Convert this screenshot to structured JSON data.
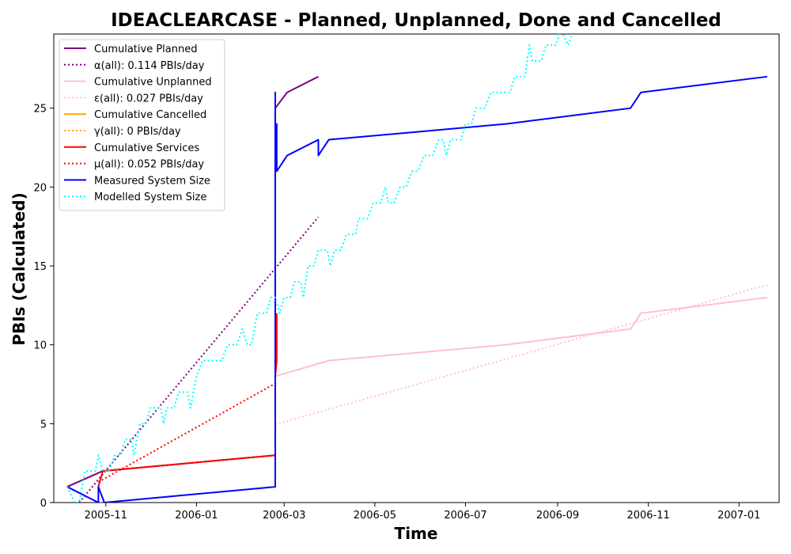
{
  "chart_data": {
    "type": "line",
    "title": "IDEACLEARCASE - Planned, Unplanned, Done  and Cancelled",
    "xlabel": "Time",
    "ylabel": "PBIs (Calculated)",
    "xlim": [
      "2005-09-27",
      "2007-01-28"
    ],
    "ylim": [
      0,
      29.7
    ],
    "x_ticks": [
      "2005-11",
      "2006-01",
      "2006-03",
      "2006-05",
      "2006-07",
      "2006-09",
      "2006-11",
      "2007-01"
    ],
    "y_ticks": [
      0,
      5,
      10,
      15,
      20,
      25
    ],
    "grid": false,
    "legend_position": "upper-left",
    "series": [
      {
        "name": "Cumulative Planned",
        "color": "#800080",
        "style": "solid",
        "points": [
          [
            "2005-10-06",
            1
          ],
          [
            "2005-10-30",
            2
          ],
          [
            "2006-02-23",
            3
          ],
          [
            "2006-02-23",
            25
          ],
          [
            "2006-03-03",
            26
          ],
          [
            "2006-03-24",
            27
          ]
        ]
      },
      {
        "name": "α(all): 0.114 PBIs/day",
        "color": "#800080",
        "style": "dotted",
        "points": [
          [
            "2005-10-14",
            0
          ],
          [
            "2006-03-24",
            18.1
          ]
        ]
      },
      {
        "name": "Cumulative Unplanned",
        "color": "#ffc0cb",
        "style": "solid",
        "points": [
          [
            "2006-02-23",
            8
          ],
          [
            "2006-03-31",
            9
          ],
          [
            "2006-07-28",
            10
          ],
          [
            "2006-10-20",
            11
          ],
          [
            "2006-10-27",
            12
          ],
          [
            "2007-01-20",
            13
          ]
        ]
      },
      {
        "name": "ε(all): 0.027 PBIs/day",
        "color": "#ffc0cb",
        "style": "dotted",
        "points": [
          [
            "2006-02-23",
            4.95
          ],
          [
            "2007-01-20",
            13.8
          ]
        ]
      },
      {
        "name": "Cumulative Cancelled",
        "color": "#ffa500",
        "style": "solid",
        "points": []
      },
      {
        "name": "γ(all): 0 PBIs/day",
        "color": "#ffa500",
        "style": "dotted",
        "points": []
      },
      {
        "name": "Cumulative Services",
        "color": "#ff0000",
        "style": "solid",
        "points": [
          [
            "2005-10-27",
            1
          ],
          [
            "2005-10-30",
            2
          ],
          [
            "2006-02-23",
            3
          ],
          [
            "2006-02-23",
            8
          ],
          [
            "2006-02-24",
            9
          ],
          [
            "2006-02-24",
            12
          ]
        ]
      },
      {
        "name": "μ(all): 0.052 PBIs/day",
        "color": "#ff0000",
        "style": "dotted",
        "points": [
          [
            "2005-10-27",
            1.3
          ],
          [
            "2006-02-24",
            7.6
          ]
        ]
      },
      {
        "name": "Measured System Size",
        "color": "#0000ff",
        "style": "solid",
        "points": [
          [
            "2005-10-06",
            1
          ],
          [
            "2005-10-27",
            0
          ],
          [
            "2005-10-27",
            1
          ],
          [
            "2005-10-31",
            0
          ],
          [
            "2006-02-23",
            1
          ],
          [
            "2006-02-23",
            26
          ],
          [
            "2006-02-23",
            23
          ],
          [
            "2006-02-24",
            24
          ],
          [
            "2006-02-24",
            21
          ],
          [
            "2006-03-03",
            22
          ],
          [
            "2006-03-24",
            23
          ],
          [
            "2006-03-24",
            22
          ],
          [
            "2006-03-31",
            23
          ],
          [
            "2006-07-28",
            24
          ],
          [
            "2006-10-20",
            25
          ],
          [
            "2006-10-27",
            26
          ],
          [
            "2007-01-20",
            27
          ]
        ]
      },
      {
        "name": "Modelled System Size",
        "color": "#00ffff",
        "style": "dotted",
        "points": [
          [
            "2005-10-06",
            1
          ],
          [
            "2005-10-11",
            0
          ],
          [
            "2005-10-14",
            0
          ],
          [
            "2005-10-18",
            2
          ],
          [
            "2005-10-25",
            2
          ],
          [
            "2005-10-27",
            3
          ],
          [
            "2005-10-30",
            2
          ],
          [
            "2005-11-03",
            2
          ],
          [
            "2005-11-07",
            3
          ],
          [
            "2005-11-11",
            3
          ],
          [
            "2005-11-14",
            4
          ],
          [
            "2005-11-18",
            4
          ],
          [
            "2005-11-20",
            3
          ],
          [
            "2005-11-24",
            5
          ],
          [
            "2005-11-28",
            5
          ],
          [
            "2005-12-01",
            6
          ],
          [
            "2005-12-08",
            6
          ],
          [
            "2005-12-10",
            5
          ],
          [
            "2005-12-12",
            6
          ],
          [
            "2005-12-17",
            6
          ],
          [
            "2005-12-20",
            7
          ],
          [
            "2005-12-26",
            7
          ],
          [
            "2005-12-28",
            6
          ],
          [
            "2006-01-01",
            8
          ],
          [
            "2006-01-05",
            9
          ],
          [
            "2006-01-18",
            9
          ],
          [
            "2006-01-22",
            10
          ],
          [
            "2006-01-28",
            10
          ],
          [
            "2006-02-01",
            11
          ],
          [
            "2006-02-04",
            10
          ],
          [
            "2006-02-07",
            10
          ],
          [
            "2006-02-11",
            12
          ],
          [
            "2006-02-17",
            12
          ],
          [
            "2006-02-20",
            13
          ],
          [
            "2006-02-23",
            13
          ],
          [
            "2006-02-26",
            12
          ],
          [
            "2006-03-01",
            13
          ],
          [
            "2006-03-05",
            13
          ],
          [
            "2006-03-08",
            14
          ],
          [
            "2006-03-12",
            14
          ],
          [
            "2006-03-14",
            13
          ],
          [
            "2006-03-17",
            15
          ],
          [
            "2006-03-21",
            15
          ],
          [
            "2006-03-24",
            16
          ],
          [
            "2006-03-30",
            16
          ],
          [
            "2006-04-01",
            15
          ],
          [
            "2006-04-04",
            16
          ],
          [
            "2006-04-08",
            16
          ],
          [
            "2006-04-12",
            17
          ],
          [
            "2006-04-18",
            17
          ],
          [
            "2006-04-20",
            18
          ],
          [
            "2006-04-26",
            18
          ],
          [
            "2006-04-30",
            19
          ],
          [
            "2006-05-05",
            19
          ],
          [
            "2006-05-08",
            20
          ],
          [
            "2006-05-10",
            19
          ],
          [
            "2006-05-14",
            19
          ],
          [
            "2006-05-18",
            20
          ],
          [
            "2006-05-22",
            20
          ],
          [
            "2006-05-26",
            21
          ],
          [
            "2006-05-30",
            21
          ],
          [
            "2006-06-03",
            22
          ],
          [
            "2006-06-09",
            22
          ],
          [
            "2006-06-13",
            23
          ],
          [
            "2006-06-16",
            23
          ],
          [
            "2006-06-18",
            22
          ],
          [
            "2006-06-21",
            23
          ],
          [
            "2006-06-28",
            23
          ],
          [
            "2006-07-01",
            24
          ],
          [
            "2006-07-05",
            24
          ],
          [
            "2006-07-08",
            25
          ],
          [
            "2006-07-14",
            25
          ],
          [
            "2006-07-18",
            26
          ],
          [
            "2006-07-31",
            26
          ],
          [
            "2006-08-03",
            27
          ],
          [
            "2006-08-10",
            27
          ],
          [
            "2006-08-13",
            29
          ],
          [
            "2006-08-15",
            28
          ],
          [
            "2006-08-21",
            28
          ],
          [
            "2006-08-24",
            29
          ],
          [
            "2006-08-31",
            29
          ],
          [
            "2006-09-03",
            30
          ],
          [
            "2006-09-08",
            29
          ],
          [
            "2006-09-12",
            30
          ]
        ]
      }
    ]
  }
}
